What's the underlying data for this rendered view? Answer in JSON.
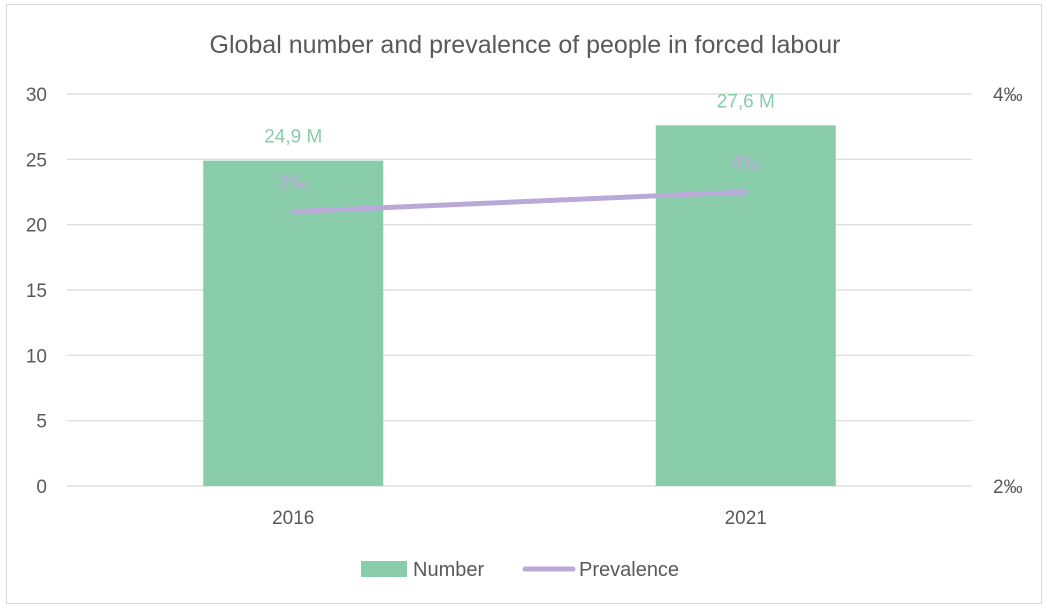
{
  "chart_data": {
    "type": "bar",
    "title": "Global number and prevalence of people in forced labour",
    "categories": [
      "2016",
      "2021"
    ],
    "series": [
      {
        "name": "Number",
        "type": "bar",
        "axis": "left",
        "values": [
          24.9,
          27.6
        ],
        "data_labels": [
          "24,9 M",
          "27,6 M"
        ],
        "color": "#88ccaa"
      },
      {
        "name": "Prevalence",
        "type": "line",
        "axis": "right",
        "values": [
          3.4,
          3.5
        ],
        "data_labels": [
          "3‰",
          "4‰"
        ],
        "color": "#b8a9d9"
      }
    ],
    "y_left": {
      "min": 0,
      "max": 30,
      "ticks": [
        0,
        5,
        10,
        15,
        20,
        25,
        30
      ],
      "tick_labels": [
        "0",
        "5",
        "10",
        "15",
        "20",
        "25",
        "30"
      ]
    },
    "y_right": {
      "min": 2,
      "max": 4,
      "ticks": [
        2,
        4
      ],
      "tick_labels": [
        "2‰",
        "4‰"
      ]
    },
    "grid": true,
    "legend": {
      "position": "bottom",
      "entries": [
        "Number",
        "Prevalence"
      ]
    },
    "xlabel": "",
    "ylabel": "",
    "colors": {
      "grid": "#d9d9d9",
      "text": "#595959",
      "bar_label": "#88ccaa",
      "line_label": "#b8a9d9"
    }
  }
}
